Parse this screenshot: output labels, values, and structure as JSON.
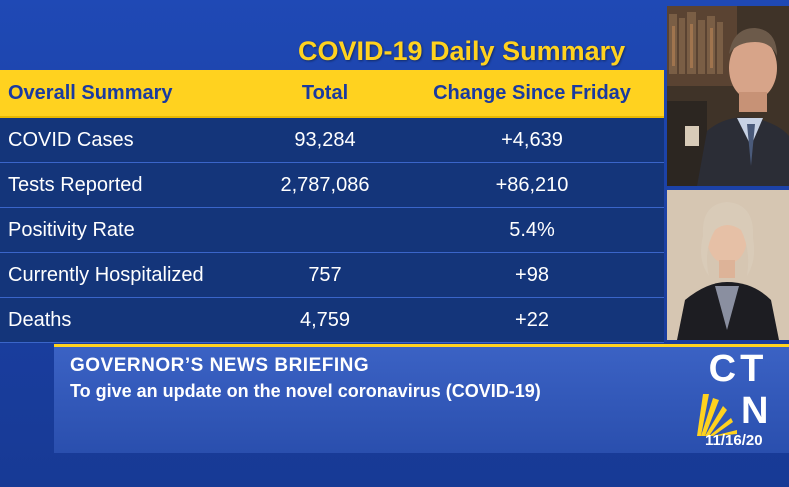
{
  "title": "COVID-19 Daily Summary",
  "table": {
    "headers": [
      "Overall Summary",
      "Total",
      "Change Since Friday"
    ],
    "rows": [
      {
        "label": "COVID Cases",
        "total": "93,284",
        "change": "+4,639"
      },
      {
        "label": "Tests Reported",
        "total": "2,787,086",
        "change": "+86,210"
      },
      {
        "label": "Positivity Rate",
        "total": "",
        "change": "5.4%"
      },
      {
        "label": "Currently Hospitalized",
        "total": "757",
        "change": "+98"
      },
      {
        "label": "Deaths",
        "total": "4,759",
        "change": "+22"
      }
    ]
  },
  "ticker": {
    "headline": "GOVERNOR’S  NEWS  BRIEFING",
    "subline": "To give an update on the novel coronavirus (COVID-19)"
  },
  "logo": {
    "top": "CT",
    "bottom": "N"
  },
  "date": "11/16/20",
  "colors": {
    "background": "#1a3ea0",
    "accent": "#ffd21f",
    "row": "#14357a"
  }
}
